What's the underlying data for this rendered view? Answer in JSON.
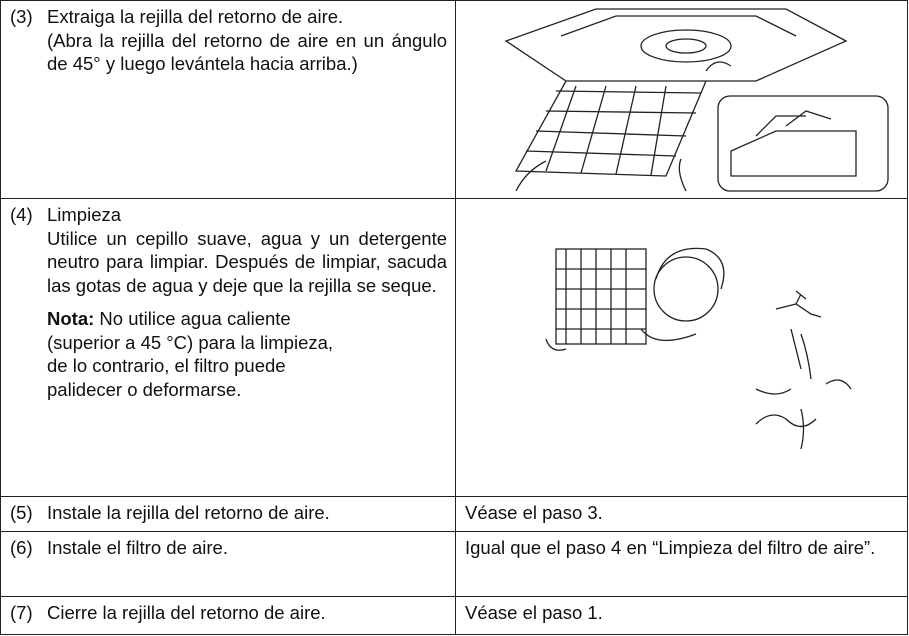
{
  "table": {
    "rows": [
      {
        "number": "(3)",
        "text": "Extraiga la rejilla del retorno de aire.",
        "subtext": "(Abra la rejilla del retorno de aire en un ángulo de 45° y luego levántela hacia arriba.)"
      },
      {
        "number": "(4)",
        "title": "Limpieza",
        "text": "Utilice un cepillo suave, agua y un detergente neutro para limpiar. Después de limpiar, sacuda las gotas de agua y deje que la rejilla se seque.",
        "note_label": "Nota:",
        "note": "No utilice agua caliente (superior a 45 °C) para la limpieza, de lo contrario, el filtro puede palidecer o deformarse."
      },
      {
        "number": "(5)",
        "text": "Instale la rejilla del retorno de aire.",
        "detail": "Véase el paso 3."
      },
      {
        "number": "(6)",
        "text": "Instale el filtro de aire.",
        "detail": "Igual que el paso 4 en “Limpieza del filtro de aire”."
      },
      {
        "number": "(7)",
        "text": "Cierre la rejilla del retorno de aire.",
        "detail": "Véase el paso 1."
      }
    ]
  }
}
